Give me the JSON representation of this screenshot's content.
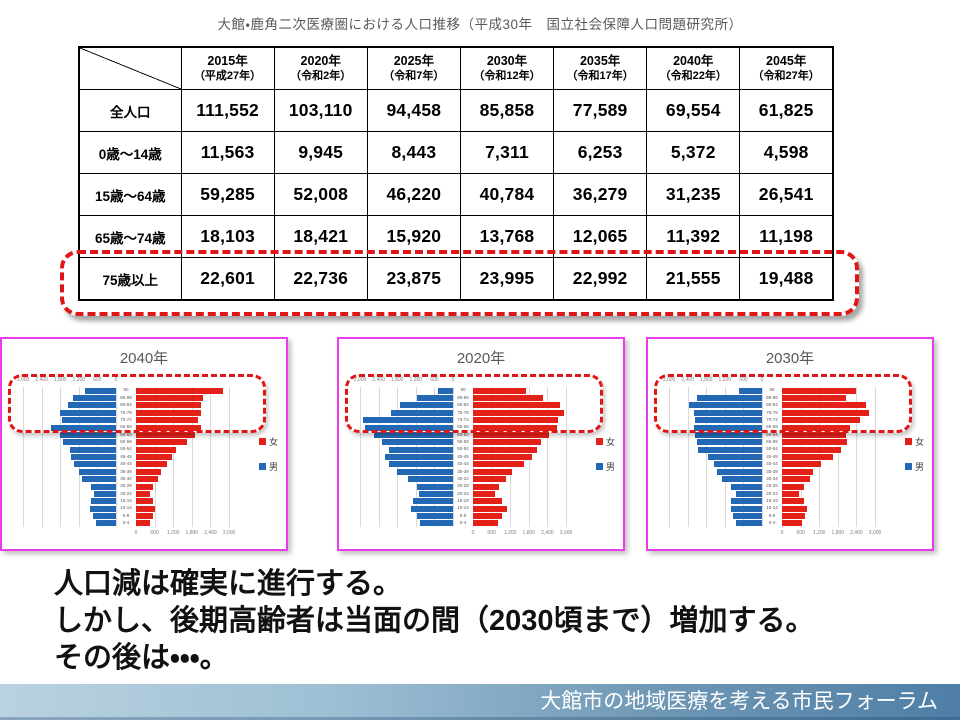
{
  "slide": {
    "title": "大館・鹿角二次医療圏における人口推移（平成30年　国立社会保障人口問題研究所）",
    "message_lines": [
      "人口減は確実に進行する。",
      "しかし、後期高齢者は当面の間（2030頃まで）増加する。",
      "その後は・・・。"
    ],
    "footer": "大館市の地域医療を考える市民フォーラム"
  },
  "colors": {
    "male_bar": "#2268b5",
    "female_bar": "#e32119",
    "panel_border": "#ea3cea",
    "highlight_dash": "#e01515",
    "grid_line": "#d9d9d9",
    "title_gray": "#595959",
    "footer_gradient_left": "#bad2e1",
    "footer_gradient_right": "#4e7ea6"
  },
  "table": {
    "col_headers": [
      {
        "year": "2015年",
        "era": "（平成27年）"
      },
      {
        "year": "2020年",
        "era": "（令和2年）"
      },
      {
        "year": "2025年",
        "era": "（令和7年）"
      },
      {
        "year": "2030年",
        "era": "（令和12年）"
      },
      {
        "year": "2035年",
        "era": "（令和17年）"
      },
      {
        "year": "2040年",
        "era": "（令和22年）"
      },
      {
        "year": "2045年",
        "era": "（令和27年）"
      }
    ],
    "rows": [
      {
        "label": "全人口",
        "values": [
          "111,552",
          "103,110",
          "94,458",
          "85,858",
          "77,589",
          "69,554",
          "61,825"
        ],
        "highlighted": false
      },
      {
        "label": "0歳～14歳",
        "values": [
          "11,563",
          "9,945",
          "8,443",
          "7,311",
          "6,253",
          "5,372",
          "4,598"
        ],
        "highlighted": false
      },
      {
        "label": "15歳～64歳",
        "values": [
          "59,285",
          "52,008",
          "46,220",
          "40,784",
          "36,279",
          "31,235",
          "26,541"
        ],
        "highlighted": false
      },
      {
        "label": "65歳～74歳",
        "values": [
          "18,103",
          "18,421",
          "15,920",
          "13,768",
          "12,065",
          "11,392",
          "11,198"
        ],
        "highlighted": false
      },
      {
        "label": "75歳以上",
        "values": [
          "22,601",
          "22,736",
          "23,875",
          "23,995",
          "22,992",
          "21,555",
          "19,488"
        ],
        "highlighted": true
      }
    ]
  },
  "chart_data": [
    {
      "type": "table",
      "title": "大館・鹿角二次医療圏における人口推移（平成30年　国立社会保障人口問題研究所）",
      "categories": [
        "2015年",
        "2020年",
        "2025年",
        "2030年",
        "2035年",
        "2040年",
        "2045年"
      ],
      "series": [
        {
          "name": "全人口",
          "values": [
            111552,
            103110,
            94458,
            85858,
            77589,
            69554,
            61825
          ]
        },
        {
          "name": "0歳～14歳",
          "values": [
            11563,
            9945,
            8443,
            7311,
            6253,
            5372,
            4598
          ]
        },
        {
          "name": "15歳～64歳",
          "values": [
            59285,
            52008,
            46220,
            40784,
            36279,
            31235,
            26541
          ]
        },
        {
          "name": "65歳～74歳",
          "values": [
            18103,
            18421,
            15920,
            13768,
            12065,
            11392,
            11198
          ]
        },
        {
          "name": "75歳以上",
          "values": [
            22601,
            22736,
            23875,
            23995,
            22992,
            21555,
            19488
          ]
        }
      ]
    },
    {
      "type": "bar",
      "orientation": "population-pyramid",
      "title": "2020年",
      "age_groups": [
        "90",
        "85-89",
        "80-84",
        "75-79",
        "70-74",
        "65-69",
        "60-64",
        "55-59",
        "50-54",
        "45-49",
        "40-44",
        "35-39",
        "30-34",
        "25-29",
        "20-24",
        "15-19",
        "10-14",
        "5-9",
        "0-4"
      ],
      "xlim": [
        0,
        3000
      ],
      "ticks_left": [
        "3,000",
        "2,400",
        "1,800",
        "1,200",
        "600",
        "0"
      ],
      "ticks_right": [
        "0",
        "600",
        "1,200",
        "1,800",
        "2,400",
        "3,000"
      ],
      "series": [
        {
          "name": "男",
          "side": "left",
          "color": "#2268b5",
          "values": [
            500,
            1150,
            1700,
            2000,
            2900,
            2850,
            2550,
            2300,
            2050,
            2200,
            2050,
            1800,
            1450,
            1150,
            1100,
            1300,
            1350,
            1150,
            1050
          ]
        },
        {
          "name": "女",
          "side": "right",
          "color": "#e32119",
          "values": [
            1700,
            2250,
            2800,
            2950,
            2750,
            2700,
            2450,
            2200,
            2050,
            1900,
            1650,
            1250,
            1050,
            850,
            700,
            950,
            1100,
            950,
            800
          ]
        }
      ],
      "legend": [
        {
          "label": "女",
          "color": "#e32119"
        },
        {
          "label": "男",
          "color": "#2268b5"
        }
      ]
    },
    {
      "type": "bar",
      "orientation": "population-pyramid",
      "title": "2030年",
      "age_groups": [
        "90",
        "85-89",
        "80-84",
        "75-79",
        "70-74",
        "65-69",
        "60-64",
        "55-59",
        "50-54",
        "45-49",
        "40-44",
        "35-39",
        "30-34",
        "25-29",
        "20-24",
        "15-19",
        "10-14",
        "5-9",
        "0-4"
      ],
      "xlim": [
        0,
        3000
      ],
      "ticks_left": [
        "3,000",
        "2,400",
        "1,800",
        "1,200",
        "600",
        "0"
      ],
      "ticks_right": [
        "0",
        "600",
        "1,200",
        "1,800",
        "2,400",
        "3,000"
      ],
      "series": [
        {
          "name": "男",
          "side": "left",
          "color": "#2268b5",
          "values": [
            750,
            2100,
            2350,
            2200,
            2150,
            2200,
            2150,
            2100,
            2050,
            1750,
            1550,
            1450,
            1300,
            1000,
            850,
            1000,
            1000,
            950,
            850
          ]
        },
        {
          "name": "女",
          "side": "right",
          "color": "#e32119",
          "values": [
            2400,
            2050,
            2700,
            2800,
            2500,
            2200,
            2050,
            2100,
            1900,
            1650,
            1250,
            1000,
            900,
            700,
            550,
            700,
            800,
            750,
            650
          ]
        }
      ],
      "legend": [
        {
          "label": "女",
          "color": "#e32119"
        },
        {
          "label": "男",
          "color": "#2268b5"
        }
      ]
    },
    {
      "type": "bar",
      "orientation": "population-pyramid",
      "title": "2040年",
      "age_groups": [
        "90",
        "85-89",
        "80-84",
        "75-79",
        "70-74",
        "65-69",
        "60-64",
        "55-59",
        "50-54",
        "45-49",
        "40-44",
        "35-39",
        "30-34",
        "25-29",
        "20-24",
        "15-19",
        "10-14",
        "5-9",
        "0-4"
      ],
      "xlim": [
        0,
        3000
      ],
      "ticks_left": [
        "3,000",
        "2,400",
        "1,800",
        "1,200",
        "600",
        "0"
      ],
      "ticks_right": [
        "0",
        "600",
        "1,200",
        "1,800",
        "2,400",
        "3,000"
      ],
      "series": [
        {
          "name": "男",
          "side": "left",
          "color": "#2268b5",
          "values": [
            1000,
            1400,
            1550,
            1800,
            1750,
            2100,
            1800,
            1700,
            1500,
            1450,
            1350,
            1200,
            1100,
            800,
            700,
            800,
            850,
            750,
            650
          ]
        },
        {
          "name": "女",
          "side": "right",
          "color": "#e32119",
          "values": [
            2800,
            2150,
            2100,
            2100,
            2000,
            2100,
            1900,
            1650,
            1300,
            1150,
            1000,
            800,
            700,
            550,
            450,
            550,
            600,
            550,
            450
          ]
        }
      ],
      "legend": [
        {
          "label": "女",
          "color": "#e32119"
        },
        {
          "label": "男",
          "color": "#2268b5"
        }
      ]
    }
  ]
}
